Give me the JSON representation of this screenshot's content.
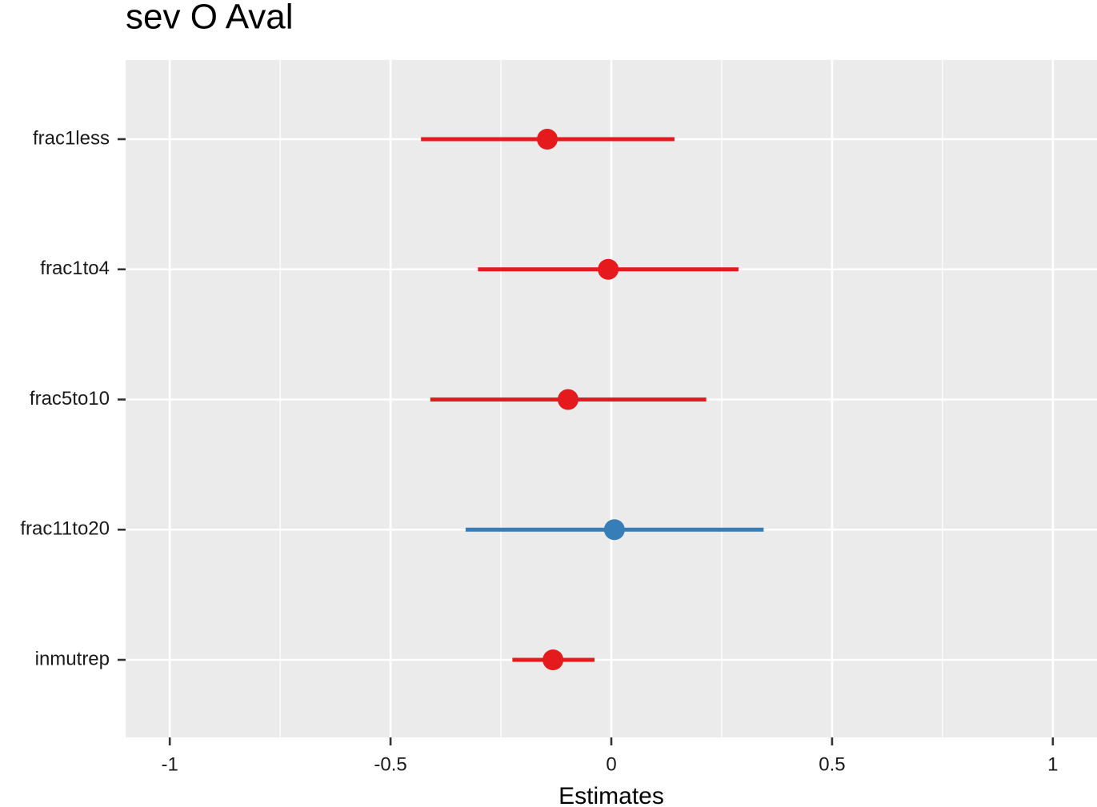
{
  "chart_data": {
    "type": "forest",
    "title": "sev O Aval",
    "x_label": "Estimates",
    "categories": [
      "frac1less",
      "frac1to4",
      "frac5to10",
      "frac11to20",
      "inmutrep"
    ],
    "values": [
      -0.145,
      -0.007,
      -0.098,
      0.007,
      -0.132
    ],
    "lower": [
      -0.431,
      -0.302,
      -0.41,
      -0.33,
      -0.224
    ],
    "upper": [
      0.143,
      0.288,
      0.215,
      0.345,
      -0.038
    ],
    "colors": [
      "#e41a1c",
      "#e41a1c",
      "#e41a1c",
      "#377eb8",
      "#e41a1c"
    ],
    "xlim": [
      -1.1,
      1.1
    ],
    "xticks": [
      -1,
      -0.5,
      0,
      0.5,
      1
    ],
    "x_minor_ticks": [
      -0.75,
      -0.25,
      0.25,
      0.75
    ],
    "grid": true
  }
}
